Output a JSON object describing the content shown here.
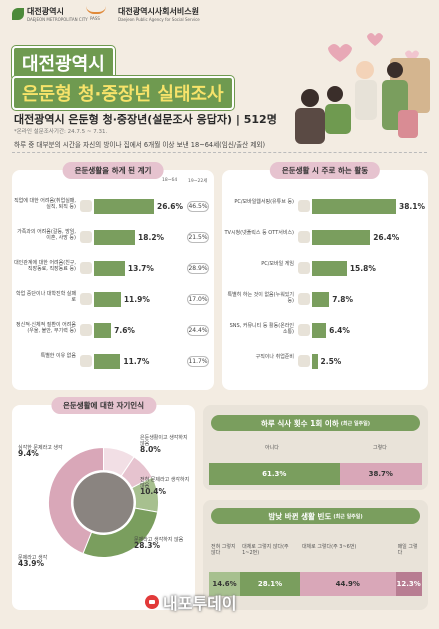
{
  "header": {
    "logo_left": "대전광역시",
    "logo_left_sub": "DAEJEON METROPOLITAN CITY",
    "logo_mid": "PASS",
    "logo_right": "대전광역시사회서비스원",
    "logo_right_sub": "Daejeon Public Agency for Social Service",
    "title_line1": "대전광역시",
    "title_line2_a": "은둔형 청·중장년",
    "title_line2_b": "실태조사",
    "survey": "대전광역시 은둔형 청·중장년(설문조사 응답자)",
    "survey_sep": "|",
    "survey_count": "512명",
    "survey_period": "*온라인 설문조사기간: 24.7.5 ~ 7.31.",
    "description": "하루 중 대부분의 시간을 자신의 방이나 집에서 6개월 이상 보낸 18~64세(임신/출산 제외)"
  },
  "reasons": {
    "title": "은둔생활을 하게 된 계기",
    "col1": "18~64",
    "col2": "19~22세",
    "items": [
      {
        "label": "직업에 대한 어려움(취업실패, 실직, 퇴직 등)",
        "value": "26.6%",
        "pct": 26.6,
        "other": "46.5%"
      },
      {
        "label": "가족과의 어려움(갈등, 방임, 이혼, 사망 등)",
        "value": "18.2%",
        "pct": 18.2,
        "other": "21.5%"
      },
      {
        "label": "대인관계에 대한 어려움(친구, 직장동료, 직장동료 등)",
        "value": "13.7%",
        "pct": 13.7,
        "other": "28.9%"
      },
      {
        "label": "학업 중단이나 대학진학 실패로",
        "value": "11.9%",
        "pct": 11.9,
        "other": "17.0%"
      },
      {
        "label": "정신적·신체적 질환이 어려움(우울, 불안, 무기력 등)",
        "value": "7.6%",
        "pct": 7.6,
        "other": "24.4%"
      },
      {
        "label": "특별한 이유 없음",
        "value": "11.7%",
        "pct": 11.7,
        "other": "11.7%"
      }
    ]
  },
  "activities": {
    "title": "은둔생활 시 주로 하는 활동",
    "items": [
      {
        "label": "PC/모바일웹서핑(유튜브 등)",
        "value": "38.1%",
        "pct": 38.1
      },
      {
        "label": "TV시청(넷플릭스 등 OTT서비스)",
        "value": "26.4%",
        "pct": 26.4
      },
      {
        "label": "PC/모바일 게임",
        "value": "15.8%",
        "pct": 15.8
      },
      {
        "label": "특별히 하는 것이 없음(누워있기 등)",
        "value": "7.8%",
        "pct": 7.8
      },
      {
        "label": "SNS, 커뮤니티 등 활동(온라인 소통)",
        "value": "6.4%",
        "pct": 6.4
      },
      {
        "label": "구직이나 취업준비",
        "value": "2.5%",
        "pct": 2.5
      }
    ]
  },
  "self": {
    "title": "은둔생활에 대한 자기인식",
    "segments": [
      {
        "label": "심각한 문제라고 생각",
        "value": "9.4%",
        "pct": 9.4,
        "color": "#f2dfe5"
      },
      {
        "label": "은둔생활이고 생각하지 않음",
        "value": "8.0%",
        "pct": 8.0,
        "color": "#e6c3cf"
      },
      {
        "label": "전혀 문제라고 생각하지 않음",
        "value": "10.4%",
        "pct": 10.4,
        "color": "#a7c08f"
      },
      {
        "label": "문제라고 생각하지 않음",
        "value": "28.3%",
        "pct": 28.3,
        "color": "#7a9e5e"
      },
      {
        "label": "문제라고 생각",
        "value": "43.9%",
        "pct": 43.9,
        "color": "#d9a7b8"
      }
    ]
  },
  "meals": {
    "title": "하루 식사 횟수 1회 이하",
    "title_small": "(최근 일주일)",
    "no_label": "아니다",
    "yes_label": "그렇다",
    "no_value": "61.3%",
    "no_pct": 61.3,
    "yes_value": "38.7%",
    "yes_pct": 38.7
  },
  "daynight": {
    "title": "밤낮 바뀐 생활 빈도",
    "title_small": "(최근 일주일)",
    "items": [
      {
        "label": "전혀 그렇지 않다",
        "value": "14.6%",
        "pct": 14.6,
        "color": "#a7c08f"
      },
      {
        "label": "대체로 그렇지 않다(주 1~2번)",
        "value": "28.1%",
        "pct": 28.1,
        "color": "#7a9e5e"
      },
      {
        "label": "대체로 그렇다(주 3~6번)",
        "value": "44.9%",
        "pct": 44.9,
        "color": "#d9a7b8"
      },
      {
        "label": "매일 그렇다",
        "value": "12.3%",
        "pct": 12.3,
        "color": "#b87d92"
      }
    ]
  },
  "watermark": "내포투데이"
}
